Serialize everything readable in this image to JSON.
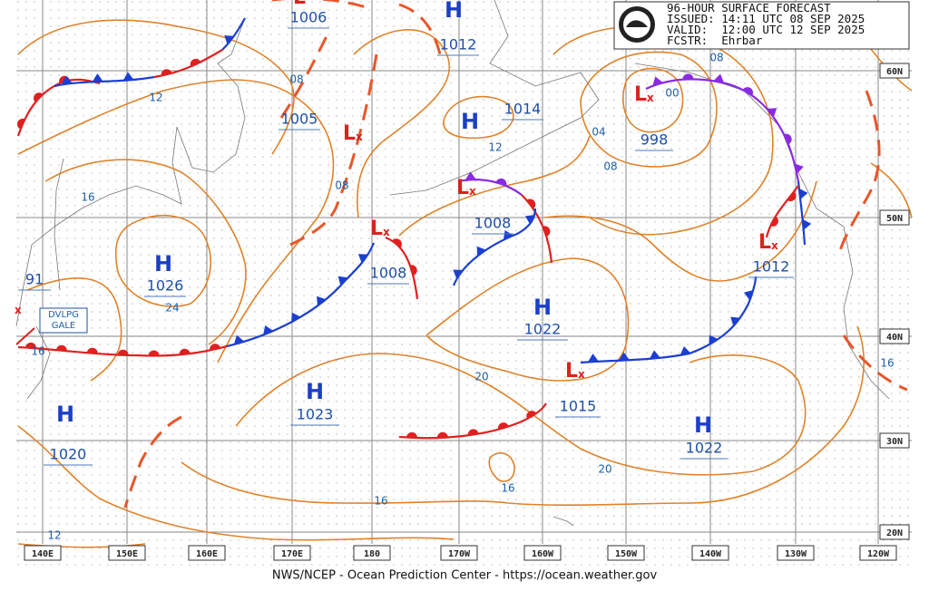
{
  "header": {
    "lines": [
      "96-HOUR SURFACE FORECAST",
      "ISSUED: 14:11 UTC 08 SEP 2025",
      "VALID:  12:00 UTC 12 SEP 2025",
      "FCSTR:  Ehrbar"
    ]
  },
  "footer": "NWS/NCEP - Ocean Prediction Center - https://ocean.weather.gov",
  "lon_labels": [
    "140E",
    "150E",
    "160E",
    "170E",
    "180",
    "170W",
    "160W",
    "150W",
    "140W",
    "130W",
    "120W"
  ],
  "lat_labels": [
    "60N",
    "50N",
    "40N",
    "30N",
    "20N"
  ],
  "centers": [
    {
      "symbol": "H",
      "pressure": "1012"
    },
    {
      "symbol": "L",
      "pressure": "1006"
    },
    {
      "symbol": "L",
      "pressure": "1005"
    },
    {
      "symbol": "H",
      "pressure": "1014"
    },
    {
      "symbol": "L",
      "pressure": "998"
    },
    {
      "symbol": "H",
      "pressure": "1026"
    },
    {
      "symbol": "L",
      "pressure": "1008"
    },
    {
      "symbol": "L",
      "pressure": "1008"
    },
    {
      "symbol": "H",
      "pressure": "1022"
    },
    {
      "symbol": "L",
      "pressure": "1012"
    },
    {
      "symbol": "H",
      "pressure": "1023"
    },
    {
      "symbol": "L",
      "pressure": "1015"
    },
    {
      "symbol": "H",
      "pressure": "1022"
    },
    {
      "symbol": "H",
      "pressure": "1020"
    }
  ],
  "edge_pressure": "91",
  "warning": [
    "DVLPG",
    "GALE"
  ],
  "isobar_labels": [
    "08",
    "12",
    "08",
    "12",
    "04",
    "08",
    "08",
    "00",
    "16",
    "24",
    "16",
    "20",
    "20",
    "16",
    "16",
    "12",
    "16"
  ]
}
